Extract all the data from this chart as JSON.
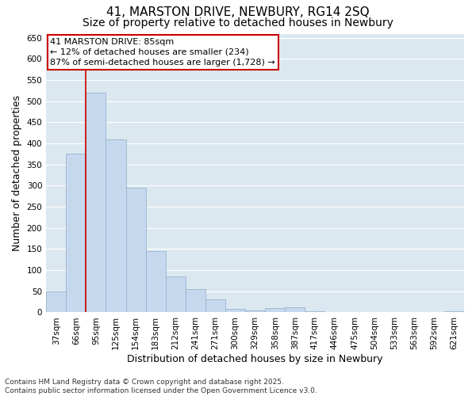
{
  "title1": "41, MARSTON DRIVE, NEWBURY, RG14 2SQ",
  "title2": "Size of property relative to detached houses in Newbury",
  "xlabel": "Distribution of detached houses by size in Newbury",
  "ylabel": "Number of detached properties",
  "categories": [
    "37sqm",
    "66sqm",
    "95sqm",
    "125sqm",
    "154sqm",
    "183sqm",
    "212sqm",
    "241sqm",
    "271sqm",
    "300sqm",
    "329sqm",
    "358sqm",
    "387sqm",
    "417sqm",
    "446sqm",
    "475sqm",
    "504sqm",
    "533sqm",
    "563sqm",
    "592sqm",
    "621sqm"
  ],
  "values": [
    50,
    375,
    520,
    410,
    295,
    145,
    85,
    55,
    30,
    8,
    5,
    10,
    12,
    2,
    0,
    0,
    0,
    0,
    0,
    0,
    2
  ],
  "bar_color": "#c5d8ed",
  "bar_edge_color": "#9ab5cc",
  "vline_color": "#cc0000",
  "vline_x_index": 2,
  "annotation_line1": "41 MARSTON DRIVE: 85sqm",
  "annotation_line2": "← 12% of detached houses are smaller (234)",
  "annotation_line3": "87% of semi-detached houses are larger (1,728) →",
  "annotation_box_color": "#cc0000",
  "ylim": [
    0,
    660
  ],
  "yticks": [
    0,
    50,
    100,
    150,
    200,
    250,
    300,
    350,
    400,
    450,
    500,
    550,
    600,
    650
  ],
  "background_color": "#dce8f0",
  "plot_bg_color": "#dce8f0",
  "footer": "Contains HM Land Registry data © Crown copyright and database right 2025.\nContains public sector information licensed under the Open Government Licence v3.0.",
  "title_fontsize": 11,
  "subtitle_fontsize": 10,
  "tick_fontsize": 7.5,
  "label_fontsize": 9,
  "annot_fontsize": 8
}
